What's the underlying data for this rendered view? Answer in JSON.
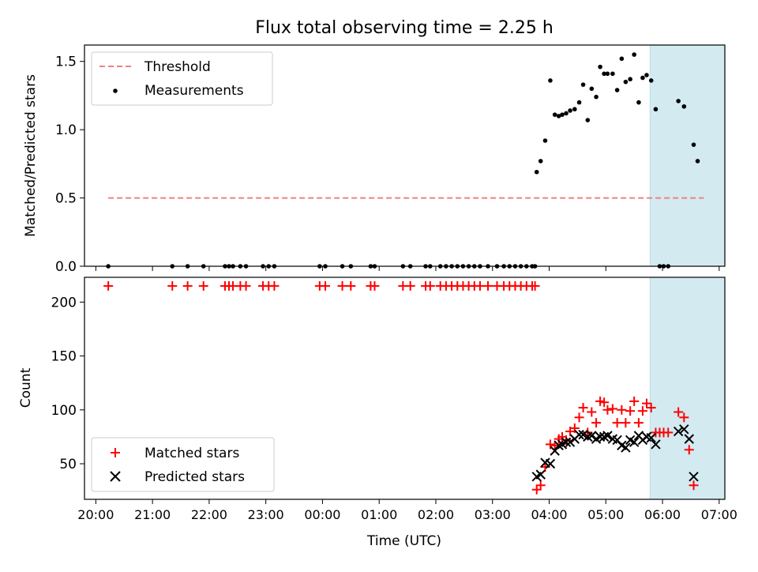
{
  "title": "Flux total observing time = 2.25 h",
  "chart_data": [
    {
      "type": "scatter",
      "panel": "top",
      "ylabel": "Matched/Predicted stars",
      "xlabel": "",
      "xlim": [
        -0.2,
        11.1
      ],
      "ylim": [
        0,
        1.62
      ],
      "yticks": [
        0.0,
        0.5,
        1.0,
        1.5
      ],
      "ytick_labels": [
        "0.0",
        "0.5",
        "1.0",
        "1.5"
      ],
      "grid": false,
      "legend_position": "top-left",
      "shaded_region": [
        9.78,
        12.0
      ],
      "shaded_region_color": "#d4eaf1",
      "threshold": {
        "name": "Threshold",
        "value": 0.5,
        "x_range": [
          0.22,
          10.73
        ],
        "color": "#f08080"
      },
      "series": [
        {
          "name": "Measurements",
          "color": "#000000",
          "points": [
            [
              0.22,
              0.0
            ],
            [
              1.35,
              0.0
            ],
            [
              1.62,
              0.0
            ],
            [
              1.9,
              0.0
            ],
            [
              2.28,
              0.0
            ],
            [
              2.35,
              0.0
            ],
            [
              2.42,
              0.0
            ],
            [
              2.55,
              0.0
            ],
            [
              2.65,
              0.0
            ],
            [
              2.95,
              0.0
            ],
            [
              3.05,
              0.0
            ],
            [
              3.15,
              0.0
            ],
            [
              3.95,
              0.0
            ],
            [
              4.05,
              0.0
            ],
            [
              4.35,
              0.0
            ],
            [
              4.5,
              0.0
            ],
            [
              4.85,
              0.0
            ],
            [
              4.92,
              0.0
            ],
            [
              5.42,
              0.0
            ],
            [
              5.55,
              0.0
            ],
            [
              5.82,
              0.0
            ],
            [
              5.9,
              0.0
            ],
            [
              6.08,
              0.0
            ],
            [
              6.18,
              0.0
            ],
            [
              6.28,
              0.0
            ],
            [
              6.38,
              0.0
            ],
            [
              6.48,
              0.0
            ],
            [
              6.58,
              0.0
            ],
            [
              6.68,
              0.0
            ],
            [
              6.78,
              0.0
            ],
            [
              6.92,
              0.0
            ],
            [
              7.08,
              0.0
            ],
            [
              7.2,
              0.0
            ],
            [
              7.3,
              0.0
            ],
            [
              7.4,
              0.0
            ],
            [
              7.5,
              0.0
            ],
            [
              7.6,
              0.0
            ],
            [
              7.7,
              0.0
            ],
            [
              7.75,
              0.0
            ],
            [
              7.78,
              0.69
            ],
            [
              7.85,
              0.77
            ],
            [
              7.93,
              0.92
            ],
            [
              8.02,
              1.36
            ],
            [
              8.1,
              1.11
            ],
            [
              8.17,
              1.1
            ],
            [
              8.23,
              1.11
            ],
            [
              8.3,
              1.12
            ],
            [
              8.37,
              1.14
            ],
            [
              8.45,
              1.15
            ],
            [
              8.53,
              1.2
            ],
            [
              8.6,
              1.33
            ],
            [
              8.68,
              1.07
            ],
            [
              8.75,
              1.3
            ],
            [
              8.83,
              1.24
            ],
            [
              8.9,
              1.46
            ],
            [
              8.97,
              1.41
            ],
            [
              9.03,
              1.41
            ],
            [
              9.12,
              1.41
            ],
            [
              9.2,
              1.29
            ],
            [
              9.28,
              1.52
            ],
            [
              9.35,
              1.35
            ],
            [
              9.43,
              1.37
            ],
            [
              9.5,
              1.55
            ],
            [
              9.58,
              1.2
            ],
            [
              9.65,
              1.38
            ],
            [
              9.72,
              1.4
            ],
            [
              9.8,
              1.36
            ],
            [
              9.88,
              1.15
            ],
            [
              9.95,
              0.0
            ],
            [
              10.02,
              0.0
            ],
            [
              10.1,
              0.0
            ],
            [
              10.28,
              1.21
            ],
            [
              10.38,
              1.17
            ],
            [
              10.55,
              0.89
            ],
            [
              10.62,
              0.77
            ]
          ]
        }
      ]
    },
    {
      "type": "scatter",
      "panel": "bottom",
      "ylabel": "Count",
      "xlabel": "Time (UTC)",
      "xlim": [
        -0.2,
        11.1
      ],
      "ylim": [
        17,
        223
      ],
      "yticks": [
        50,
        100,
        150,
        200
      ],
      "ytick_labels": [
        "50",
        "100",
        "150",
        "200"
      ],
      "xticks": [
        0,
        1,
        2,
        3,
        4,
        5,
        6,
        7,
        8,
        9,
        10,
        11
      ],
      "xtick_labels": [
        "20:00",
        "21:00",
        "22:00",
        "23:00",
        "00:00",
        "01:00",
        "02:00",
        "03:00",
        "04:00",
        "05:00",
        "06:00",
        "07:00"
      ],
      "grid": false,
      "legend_position": "bottom-left",
      "shaded_region": [
        9.78,
        12.0
      ],
      "shaded_region_color": "#d4eaf1",
      "series": [
        {
          "name": "Matched stars",
          "marker": "plus",
          "color": "#ff0000",
          "points": [
            [
              0.22,
              215
            ],
            [
              1.35,
              215
            ],
            [
              1.62,
              215
            ],
            [
              1.9,
              215
            ],
            [
              2.28,
              215
            ],
            [
              2.35,
              215
            ],
            [
              2.42,
              215
            ],
            [
              2.55,
              215
            ],
            [
              2.65,
              215
            ],
            [
              2.95,
              215
            ],
            [
              3.05,
              215
            ],
            [
              3.15,
              215
            ],
            [
              3.95,
              215
            ],
            [
              4.05,
              215
            ],
            [
              4.35,
              215
            ],
            [
              4.5,
              215
            ],
            [
              4.85,
              215
            ],
            [
              4.92,
              215
            ],
            [
              5.42,
              215
            ],
            [
              5.55,
              215
            ],
            [
              5.82,
              215
            ],
            [
              5.9,
              215
            ],
            [
              6.08,
              215
            ],
            [
              6.18,
              215
            ],
            [
              6.28,
              215
            ],
            [
              6.38,
              215
            ],
            [
              6.48,
              215
            ],
            [
              6.58,
              215
            ],
            [
              6.68,
              215
            ],
            [
              6.78,
              215
            ],
            [
              6.92,
              215
            ],
            [
              7.08,
              215
            ],
            [
              7.2,
              215
            ],
            [
              7.3,
              215
            ],
            [
              7.4,
              215
            ],
            [
              7.5,
              215
            ],
            [
              7.6,
              215
            ],
            [
              7.7,
              215
            ],
            [
              7.75,
              215
            ],
            [
              7.78,
              26
            ],
            [
              7.85,
              30
            ],
            [
              7.93,
              47
            ],
            [
              8.02,
              68
            ],
            [
              8.1,
              67
            ],
            [
              8.17,
              73
            ],
            [
              8.23,
              75
            ],
            [
              8.3,
              72
            ],
            [
              8.37,
              80
            ],
            [
              8.45,
              83
            ],
            [
              8.53,
              93
            ],
            [
              8.6,
              102
            ],
            [
              8.68,
              79
            ],
            [
              8.75,
              98
            ],
            [
              8.83,
              88
            ],
            [
              8.9,
              108
            ],
            [
              8.97,
              107
            ],
            [
              9.03,
              100
            ],
            [
              9.12,
              101
            ],
            [
              9.2,
              88
            ],
            [
              9.28,
              100
            ],
            [
              9.35,
              88
            ],
            [
              9.43,
              99
            ],
            [
              9.5,
              108
            ],
            [
              9.58,
              88
            ],
            [
              9.65,
              99
            ],
            [
              9.72,
              106
            ],
            [
              9.8,
              102
            ],
            [
              9.88,
              79
            ],
            [
              9.95,
              79
            ],
            [
              10.02,
              79
            ],
            [
              10.1,
              79
            ],
            [
              10.28,
              98
            ],
            [
              10.38,
              93
            ],
            [
              10.47,
              63
            ],
            [
              10.55,
              30
            ]
          ]
        },
        {
          "name": "Predicted stars",
          "marker": "x",
          "color": "#000000",
          "points": [
            [
              7.78,
              38
            ],
            [
              7.85,
              40
            ],
            [
              7.93,
              51
            ],
            [
              8.02,
              50
            ],
            [
              8.1,
              62
            ],
            [
              8.17,
              67
            ],
            [
              8.23,
              68
            ],
            [
              8.3,
              70
            ],
            [
              8.37,
              70
            ],
            [
              8.45,
              73
            ],
            [
              8.53,
              77
            ],
            [
              8.6,
              77
            ],
            [
              8.68,
              75
            ],
            [
              8.75,
              76
            ],
            [
              8.83,
              73
            ],
            [
              8.9,
              75
            ],
            [
              8.97,
              75
            ],
            [
              9.03,
              76
            ],
            [
              9.12,
              73
            ],
            [
              9.2,
              72
            ],
            [
              9.28,
              67
            ],
            [
              9.35,
              65
            ],
            [
              9.43,
              72
            ],
            [
              9.5,
              70
            ],
            [
              9.58,
              76
            ],
            [
              9.65,
              72
            ],
            [
              9.72,
              75
            ],
            [
              9.8,
              74
            ],
            [
              9.88,
              68
            ],
            [
              10.28,
              80
            ],
            [
              10.38,
              82
            ],
            [
              10.47,
              73
            ],
            [
              10.55,
              38
            ]
          ]
        }
      ]
    }
  ]
}
